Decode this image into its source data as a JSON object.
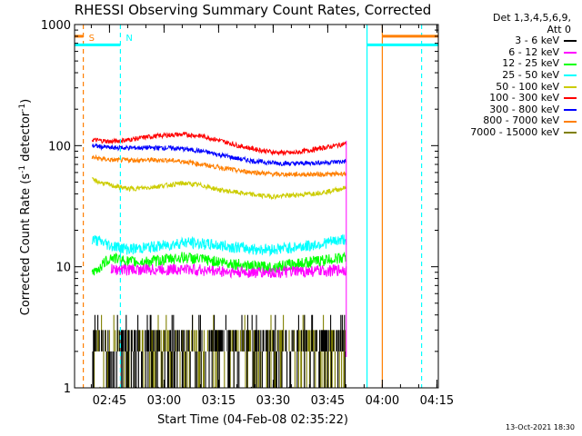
{
  "title": "RHESSI Observing Summary Count Rates, Corrected",
  "legend": {
    "header_line1": "Det 1,3,4,5,6,9,",
    "header_line2": "Att 0",
    "entries": [
      {
        "label": "3 - 6 keV",
        "color": "#000000"
      },
      {
        "label": "6 - 12 keV",
        "color": "#ff00ff"
      },
      {
        "label": "12 - 25 keV",
        "color": "#00ff00"
      },
      {
        "label": "25 - 50 keV",
        "color": "#00ffff"
      },
      {
        "label": "50 - 100 keV",
        "color": "#cccc00"
      },
      {
        "label": "100 - 300 keV",
        "color": "#ff0000"
      },
      {
        "label": "300 - 800 keV",
        "color": "#0000ff"
      },
      {
        "label": "800 - 7000 keV",
        "color": "#ff7f00"
      },
      {
        "label": "7000 - 15000 keV",
        "color": "#808000"
      }
    ]
  },
  "timestamp": "13-Oct-2021 18:30",
  "chart_data": {
    "type": "line",
    "title": "RHESSI Observing Summary Count Rates, Corrected",
    "xlabel": "Start Time (04-Feb-08 02:35:22)",
    "ylabel": "Corrected Count Rate (s",
    "ylabel_sup": "-1",
    "ylabel_suffix": " detector",
    "ylabel_sup2": "-1",
    "ylabel_end": ")",
    "y_scale": "log",
    "ylim": [
      1,
      1000
    ],
    "yticks": [
      {
        "value": 1,
        "label": "1"
      },
      {
        "value": 10,
        "label": "10"
      },
      {
        "value": 100,
        "label": "100"
      },
      {
        "value": 1000,
        "label": "1000"
      }
    ],
    "xlim_minutes": [
      0,
      100
    ],
    "xticks": [
      {
        "value": 9.6,
        "label": "02:45"
      },
      {
        "value": 24.6,
        "label": "03:00"
      },
      {
        "value": 39.6,
        "label": "03:15"
      },
      {
        "value": 54.6,
        "label": "03:30"
      },
      {
        "value": 69.6,
        "label": "03:45"
      },
      {
        "value": 84.6,
        "label": "04:00"
      },
      {
        "value": 99.6,
        "label": "04:15"
      }
    ],
    "data_window_minutes": [
      4.8,
      74.7
    ],
    "series": [
      {
        "name": "100 - 300 keV",
        "color": "#ff0000",
        "x": [
          4.8,
          10,
          15,
          20,
          25,
          30,
          35,
          40,
          45,
          50,
          55,
          60,
          65,
          70,
          74.7
        ],
        "y": [
          112,
          108,
          112,
          118,
          122,
          124,
          120,
          110,
          100,
          93,
          88,
          87,
          92,
          98,
          104
        ]
      },
      {
        "name": "300 - 800 keV",
        "color": "#0000ff",
        "x": [
          4.8,
          10,
          15,
          20,
          25,
          30,
          35,
          40,
          45,
          50,
          55,
          60,
          65,
          70,
          74.7
        ],
        "y": [
          100,
          96,
          96,
          96,
          96,
          94,
          90,
          84,
          78,
          74,
          72,
          71,
          72,
          73,
          74
        ]
      },
      {
        "name": "800 - 7000 keV",
        "color": "#ff7f00",
        "x": [
          4.8,
          10,
          15,
          20,
          25,
          30,
          35,
          40,
          45,
          50,
          55,
          60,
          65,
          70,
          74.7
        ],
        "y": [
          80,
          76,
          76,
          76,
          76,
          74,
          70,
          66,
          62,
          60,
          58,
          58,
          58,
          58,
          59
        ]
      },
      {
        "name": "50 - 100 keV",
        "color": "#cccc00",
        "x": [
          4.8,
          10,
          15,
          20,
          25,
          30,
          35,
          40,
          45,
          50,
          55,
          60,
          65,
          70,
          74.7
        ],
        "y": [
          52,
          47,
          44,
          45,
          47,
          49,
          47,
          43,
          41,
          39,
          38,
          39,
          40,
          42,
          45
        ]
      },
      {
        "name": "25 - 50 keV",
        "color": "#00ffff",
        "x": [
          4.8,
          10,
          15,
          20,
          25,
          30,
          35,
          40,
          45,
          50,
          55,
          60,
          65,
          70,
          74.7
        ],
        "y": [
          17,
          15,
          14,
          14.5,
          15,
          16,
          15.5,
          15,
          14.5,
          14,
          14,
          14.5,
          15,
          16,
          17
        ]
      },
      {
        "name": "12 - 25 keV",
        "color": "#00ff00",
        "x": [
          4.8,
          10,
          15,
          20,
          25,
          30,
          35,
          40,
          45,
          50,
          55,
          60,
          65,
          70,
          74.7
        ],
        "y": [
          8.5,
          12,
          11,
          11,
          11.5,
          12,
          11.5,
          11,
          10.5,
          10,
          10,
          10.5,
          11,
          11.5,
          12
        ]
      },
      {
        "name": "6 - 12 keV",
        "color": "#ff00ff",
        "x": [
          10,
          15,
          20,
          25,
          30,
          35,
          40,
          45,
          50,
          55,
          60,
          65,
          70,
          74.7
        ],
        "y": [
          9.5,
          9.5,
          9.5,
          9.5,
          9.6,
          9.4,
          9.2,
          9.0,
          9.0,
          9.0,
          9.1,
          9.2,
          9.3,
          9.5
        ]
      },
      {
        "name": "3 - 6 keV",
        "color": "#000000",
        "x": [
          4.8,
          15,
          25,
          35,
          45,
          55,
          65,
          74.7
        ],
        "y": [
          2,
          2,
          2,
          2,
          2,
          2,
          2,
          2
        ]
      },
      {
        "name": "7000 - 15000 keV",
        "color": "#808000",
        "x": [
          4.8,
          15,
          25,
          35,
          45,
          55,
          65,
          74.7
        ],
        "y": [
          2,
          2,
          2,
          2,
          2,
          2,
          2,
          2
        ]
      }
    ],
    "markers": [
      {
        "label": "S",
        "color": "#ff7f00",
        "x": 2.4,
        "style": "dashed"
      },
      {
        "label": "N",
        "color": "#00ffff",
        "x": 12.6,
        "style": "dashed"
      },
      {
        "label": "",
        "color": "#00ffff",
        "x": 80.4,
        "style": "solid"
      },
      {
        "label": "",
        "color": "#ff7f00",
        "x": 84.6,
        "style": "solid"
      },
      {
        "label": "",
        "color": "#00ffff",
        "x": 95.4,
        "style": "dashed"
      }
    ],
    "flag_bars": [
      {
        "color": "#ff7f00",
        "x": [
          0,
          2.4
        ],
        "y": 800
      },
      {
        "color": "#00ffff",
        "x": [
          0,
          12.6
        ],
        "y": 680
      },
      {
        "color": "#ff7f00",
        "x": [
          84.6,
          100
        ],
        "y": 800
      },
      {
        "color": "#00ffff",
        "x": [
          80.4,
          100
        ],
        "y": 680
      }
    ]
  }
}
